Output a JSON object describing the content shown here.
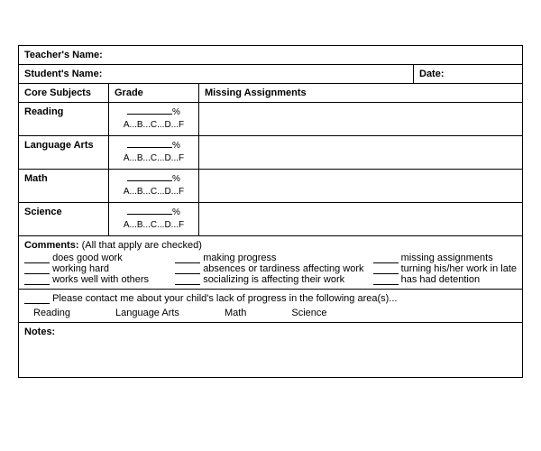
{
  "labels": {
    "teacher": "Teacher's Name:",
    "student": "Student's Name:",
    "date": "Date:",
    "core": "Core Subjects",
    "grade": "Grade",
    "missing": "Missing Assignments",
    "gradescale": "A...B...C...D...F",
    "pct": "%",
    "comments": "Comments:",
    "commentsNote": "(All that apply are checked)",
    "contact": "Please contact me about your child's lack of progress in the following area(s)...",
    "notes": "Notes:"
  },
  "subjects": [
    "Reading",
    "Language Arts",
    "Math",
    "Science"
  ],
  "checks": {
    "col1": [
      "does good work",
      "working hard",
      "works well with others"
    ],
    "col2": [
      "making progress",
      "absences or tardiness affecting work",
      "socializing is affecting their work"
    ],
    "col3": [
      "missing assignments",
      "turning his/her work in late",
      "has had detention"
    ]
  },
  "areas": [
    "Reading",
    "Language Arts",
    "Math",
    "Science"
  ]
}
